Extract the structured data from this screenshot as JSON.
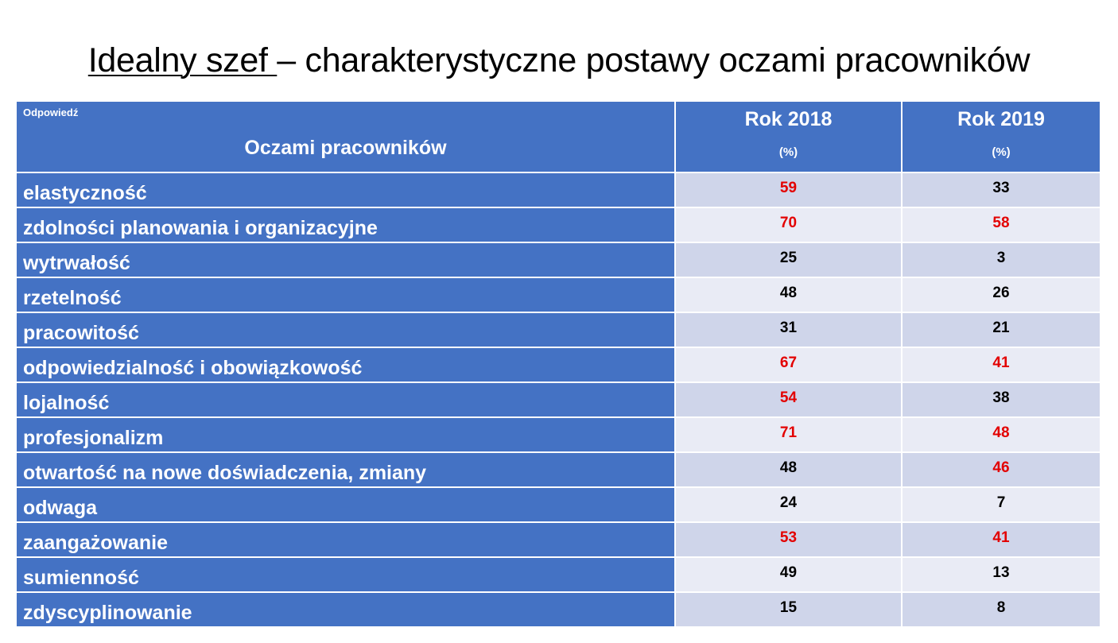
{
  "title": {
    "underlined": "Idealny szef ",
    "rest": "– charakterystyczne postawy oczami pracowników"
  },
  "table": {
    "header": {
      "small_label": "Odpowiedź",
      "main_label": "Oczami pracowników",
      "col2018": "Rok 2018",
      "col2019": "Rok 2019",
      "unit": "(%)"
    },
    "highlight_color": "#e30000",
    "header_color": "#4472c4",
    "rows": [
      {
        "label": "elastyczność",
        "y2018": "59",
        "y2019": "33",
        "hl2018": true,
        "hl2019": false
      },
      {
        "label": "zdolności planowania i organizacyjne",
        "y2018": "70",
        "y2019": "58",
        "hl2018": true,
        "hl2019": true
      },
      {
        "label": "wytrwałość",
        "y2018": "25",
        "y2019": "3",
        "hl2018": false,
        "hl2019": false
      },
      {
        "label": "rzetelność",
        "y2018": "48",
        "y2019": "26",
        "hl2018": false,
        "hl2019": false
      },
      {
        "label": "pracowitość",
        "y2018": "31",
        "y2019": "21",
        "hl2018": false,
        "hl2019": false
      },
      {
        "label": "odpowiedzialność i obowiązkowość",
        "y2018": "67",
        "y2019": "41",
        "hl2018": true,
        "hl2019": true
      },
      {
        "label": "lojalność",
        "y2018": "54",
        "y2019": "38",
        "hl2018": true,
        "hl2019": false
      },
      {
        "label": "profesjonalizm",
        "y2018": "71",
        "y2019": "48",
        "hl2018": true,
        "hl2019": true
      },
      {
        "label": "otwartość na nowe doświadczenia, zmiany",
        "y2018": "48",
        "y2019": "46",
        "hl2018": false,
        "hl2019": true
      },
      {
        "label": "odwaga",
        "y2018": "24",
        "y2019": "7",
        "hl2018": false,
        "hl2019": false
      },
      {
        "label": "zaangażowanie",
        "y2018": "53",
        "y2019": "41",
        "hl2018": true,
        "hl2019": true
      },
      {
        "label": "sumienność",
        "y2018": "49",
        "y2019": "13",
        "hl2018": false,
        "hl2019": false
      },
      {
        "label": "zdyscyplinowanie",
        "y2018": "15",
        "y2019": "8",
        "hl2018": false,
        "hl2019": false
      }
    ]
  }
}
